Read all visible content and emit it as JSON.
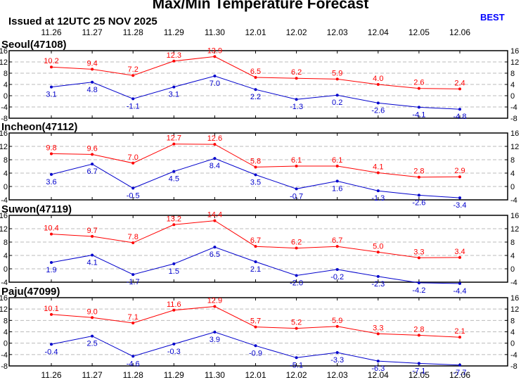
{
  "title": "Max/Min Temperature Forecast",
  "issued": "Issued at 12UTC 25 NOV 2025",
  "badge": "BEST",
  "colors": {
    "max": "#ff0000",
    "min": "#0000cc",
    "grid": "#bbbbbb"
  },
  "dates": [
    "11.26",
    "11.27",
    "11.28",
    "11.29",
    "11.30",
    "12.01",
    "12.02",
    "12.03",
    "12.04",
    "12.05",
    "12.06"
  ],
  "chart_data": [
    {
      "type": "line",
      "title": "Seoul(47108)",
      "ylim": [
        -8,
        16
      ],
      "yticks": [
        -8,
        -4,
        0,
        4,
        8,
        12,
        16
      ],
      "grid": true,
      "series": [
        {
          "values": [
            10.2,
            9.4,
            7.2,
            12.3,
            13.9,
            6.5,
            6.2,
            5.9,
            4.0,
            2.6,
            2.4
          ],
          "labels": [
            "10.2",
            "9.4",
            "7.2",
            "12.3",
            "13.9",
            "6.5",
            "6.2",
            "5.9",
            "4.0",
            "2.6",
            "2.4"
          ]
        },
        {
          "values": [
            3.1,
            4.8,
            -1.1,
            3.1,
            7.0,
            2.2,
            -1.3,
            0.2,
            -2.6,
            -4.1,
            -4.8
          ],
          "labels": [
            "3.1",
            "4.8",
            "-1.1",
            "3.1",
            "7.0",
            "2.2",
            "-1.3",
            "0.2",
            "-2.6",
            "-4.1",
            "-4.8"
          ]
        }
      ]
    },
    {
      "type": "line",
      "title": "Incheon(47112)",
      "ylim": [
        -4,
        16
      ],
      "yticks": [
        -4,
        0,
        4,
        8,
        12,
        16
      ],
      "grid": true,
      "series": [
        {
          "values": [
            9.8,
            9.6,
            7.0,
            12.7,
            12.6,
            5.8,
            6.1,
            6.1,
            4.1,
            2.8,
            2.9
          ],
          "labels": [
            "9.8",
            "9.6",
            "7.0",
            "12.7",
            "12.6",
            "5.8",
            "6.1",
            "6.1",
            "4.1",
            "2.8",
            "2.9"
          ]
        },
        {
          "values": [
            3.6,
            6.7,
            -0.5,
            4.5,
            8.4,
            3.5,
            -0.7,
            1.6,
            -1.3,
            -2.6,
            -3.4
          ],
          "labels": [
            "3.6",
            "6.7",
            "-0.5",
            "4.5",
            "8.4",
            "3.5",
            "-0.7",
            "1.6",
            "-1.3",
            "-2.6",
            "-3.4"
          ]
        }
      ]
    },
    {
      "type": "line",
      "title": "Suwon(47119)",
      "ylim": [
        -4,
        16
      ],
      "yticks": [
        -4,
        0,
        4,
        8,
        12,
        16
      ],
      "grid": true,
      "series": [
        {
          "values": [
            10.4,
            9.7,
            7.8,
            13.2,
            14.4,
            6.7,
            6.2,
            6.7,
            5.0,
            3.3,
            3.4
          ],
          "labels": [
            "10.4",
            "9.7",
            "7.8",
            "13.2",
            "14.4",
            "6.7",
            "6.2",
            "6.7",
            "5.0",
            "3.3",
            "3.4"
          ]
        },
        {
          "values": [
            1.9,
            4.1,
            -1.7,
            1.5,
            6.5,
            2.1,
            -2.0,
            -0.2,
            -2.3,
            -4.2,
            -4.4
          ],
          "labels": [
            "1.9",
            "4.1",
            "-1.7",
            "1.5",
            "6.5",
            "2.1",
            "-2.0",
            "-0.2",
            "-2.3",
            "-4.2",
            "-4.4"
          ]
        }
      ]
    },
    {
      "type": "line",
      "title": "Paju(47099)",
      "ylim": [
        -8,
        16
      ],
      "yticks": [
        -8,
        -4,
        0,
        4,
        8,
        12,
        16
      ],
      "grid": true,
      "series": [
        {
          "values": [
            10.1,
            9.0,
            7.1,
            11.6,
            12.9,
            5.7,
            5.2,
            5.9,
            3.3,
            2.8,
            2.1
          ],
          "labels": [
            "10.1",
            "9.0",
            "7.1",
            "11.6",
            "12.9",
            "5.7",
            "5.2",
            "5.9",
            "3.3",
            "2.8",
            "2.1"
          ]
        },
        {
          "values": [
            -0.4,
            2.5,
            -4.6,
            -0.3,
            3.9,
            -0.9,
            -5.1,
            -3.3,
            -6.3,
            -7.1,
            -7.7
          ],
          "labels": [
            "-0.4",
            "2.5",
            "-4.6",
            "-0.3",
            "3.9",
            "-0.9",
            "-5.1",
            "-3.3",
            "-6.3",
            "-7.1",
            "-7.7"
          ]
        }
      ]
    }
  ]
}
